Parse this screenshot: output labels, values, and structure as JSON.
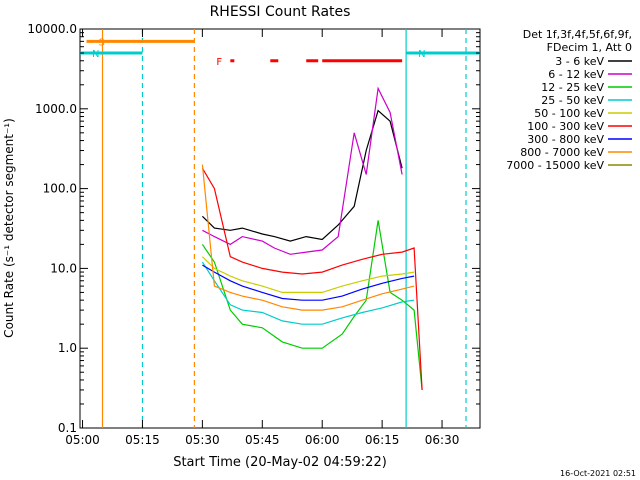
{
  "chart_data": {
    "type": "line",
    "title": "RHESSI Count Rates",
    "xlabel": "Start Time (20-May-02 04:59:22)",
    "ylabel": "Count Rate (s⁻¹ detector segment⁻¹)",
    "ylim": [
      0.1,
      10000
    ],
    "y_scale": "log",
    "xlim": [
      "04:59:22",
      "06:39:30"
    ],
    "x_ticks": [
      "05:00",
      "05:15",
      "05:30",
      "05:45",
      "06:00",
      "06:15",
      "06:30"
    ],
    "y_ticks": [
      "0.1",
      "1.0",
      "10.0",
      "100.0",
      "1000.0",
      "10000.0"
    ],
    "grid": false,
    "legend_placement": "right",
    "legend_header": [
      "Det 1f,3f,4f,5f,6f,9f,",
      "FDecim 1, Att 0"
    ],
    "series": [
      {
        "name": "3 - 6 keV",
        "color": "#000000",
        "x": [
          "05:30",
          "05:33",
          "05:37",
          "05:40",
          "05:45",
          "05:48",
          "05:52",
          "05:56",
          "06:00",
          "06:04",
          "06:08",
          "06:11",
          "06:14",
          "06:17",
          "06:20"
        ],
        "values": [
          45,
          32,
          30,
          32,
          27,
          25,
          22,
          25,
          23,
          35,
          60,
          300,
          950,
          700,
          180
        ]
      },
      {
        "name": "6 - 12 keV",
        "color": "#cc00cc",
        "x": [
          "05:30",
          "05:33",
          "05:37",
          "05:40",
          "05:45",
          "05:48",
          "05:52",
          "05:56",
          "06:00",
          "06:04",
          "06:08",
          "06:11",
          "06:14",
          "06:17",
          "06:20"
        ],
        "values": [
          30,
          25,
          20,
          25,
          22,
          18,
          15,
          16,
          17,
          25,
          500,
          150,
          1800,
          900,
          150
        ]
      },
      {
        "name": "12 - 25 keV",
        "color": "#00cc00",
        "x": [
          "05:30",
          "05:33",
          "05:37",
          "05:40",
          "05:45",
          "05:50",
          "05:55",
          "06:00",
          "06:05",
          "06:08",
          "06:11",
          "06:14",
          "06:17",
          "06:20",
          "06:23",
          "06:25"
        ],
        "values": [
          20,
          12,
          3,
          2,
          1.8,
          1.2,
          1.0,
          1.0,
          1.5,
          2.5,
          4,
          40,
          5,
          4,
          3,
          0.3
        ]
      },
      {
        "name": "25 - 50 keV",
        "color": "#00cccc",
        "x": [
          "05:30",
          "05:33",
          "05:37",
          "05:40",
          "05:45",
          "05:50",
          "05:55",
          "06:00",
          "06:05",
          "06:10",
          "06:15",
          "06:20",
          "06:23"
        ],
        "values": [
          12,
          7,
          3.5,
          3,
          2.8,
          2.2,
          2.0,
          2.0,
          2.4,
          2.8,
          3.2,
          3.8,
          4
        ]
      },
      {
        "name": "50 - 100 keV",
        "color": "#cccc00",
        "x": [
          "05:30",
          "05:33",
          "05:37",
          "05:40",
          "05:45",
          "05:50",
          "05:55",
          "06:00",
          "06:05",
          "06:10",
          "06:15",
          "06:20",
          "06:23"
        ],
        "values": [
          14,
          10,
          8,
          7,
          6,
          5,
          5,
          5,
          6,
          7,
          8,
          8.5,
          9
        ]
      },
      {
        "name": "100 - 300 keV",
        "color": "#ff0000",
        "x": [
          "05:30",
          "05:33",
          "05:37",
          "05:40",
          "05:45",
          "05:50",
          "05:55",
          "06:00",
          "06:05",
          "06:10",
          "06:15",
          "06:20",
          "06:23",
          "06:25"
        ],
        "values": [
          180,
          100,
          14,
          12,
          10,
          9,
          8.5,
          9,
          11,
          13,
          15,
          16,
          18,
          0.3
        ]
      },
      {
        "name": "300 - 800 keV",
        "color": "#0000ff",
        "x": [
          "05:30",
          "05:33",
          "05:37",
          "05:40",
          "05:45",
          "05:50",
          "05:55",
          "06:00",
          "06:05",
          "06:10",
          "06:15",
          "06:20",
          "06:23"
        ],
        "values": [
          11,
          9,
          7,
          6,
          5,
          4.2,
          4,
          4,
          4.5,
          5.5,
          6.5,
          7.5,
          8
        ]
      },
      {
        "name": "800 - 7000 keV",
        "color": "#ff8800",
        "x": [
          "05:30",
          "05:33",
          "05:37",
          "05:40",
          "05:45",
          "05:50",
          "05:55",
          "06:00",
          "06:05",
          "06:10",
          "06:15",
          "06:20",
          "06:23"
        ],
        "values": [
          200,
          6,
          5,
          4.5,
          4,
          3.3,
          3,
          3,
          3.3,
          4,
          4.8,
          5.5,
          6
        ]
      },
      {
        "name": "7000 - 15000 keV",
        "color": "#888800",
        "x": [],
        "values": []
      }
    ],
    "flags": [
      {
        "label": "S",
        "color": "#ff8800",
        "level": 7000,
        "start": "05:01",
        "end": "05:28"
      },
      {
        "label": "N",
        "color": "#00cccc",
        "level": 5000,
        "start": "04:59:22",
        "end": "05:15"
      },
      {
        "label": "N",
        "color": "#00cccc",
        "level": 5000,
        "start": "06:21",
        "end": "06:39:30"
      },
      {
        "label": "F",
        "color": "#ff0000",
        "level": 4000,
        "segments": [
          [
            "05:37",
            "05:38"
          ],
          [
            "05:47",
            "05:49"
          ],
          [
            "05:56",
            "05:59"
          ],
          [
            "06:00",
            "06:20"
          ]
        ]
      }
    ],
    "markers": [
      {
        "time": "05:05",
        "color": "#ff8800",
        "style": "solid"
      },
      {
        "time": "05:15",
        "color": "#00cccc",
        "style": "dashed"
      },
      {
        "time": "05:28",
        "color": "#ff8800",
        "style": "dashed"
      },
      {
        "time": "06:21",
        "color": "#00cccc",
        "style": "solid"
      },
      {
        "time": "06:36",
        "color": "#00cccc",
        "style": "dashed"
      }
    ]
  },
  "footer": {
    "timestamp": "16-Oct-2021 02:51"
  }
}
